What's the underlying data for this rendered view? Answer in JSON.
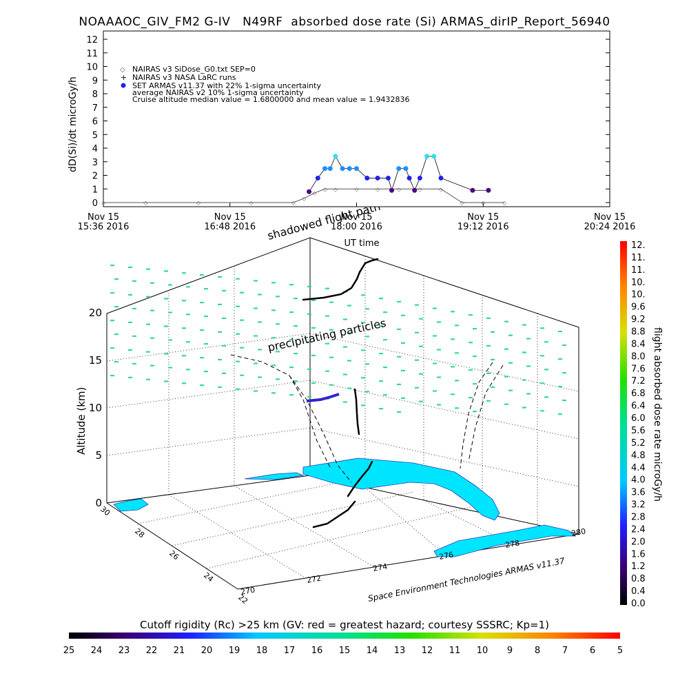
{
  "header": {
    "title": "NOAAAOC_GIV_FM2 G-IV   N49RF  absorbed dose rate (Si) ARMAS_dirIP_Report_56940"
  },
  "colors": {
    "nairas_gray": "#555555",
    "armas_blue": "#2222ee",
    "armas_lightblue": "#1e90ff",
    "armas_cyan": "#33ddee",
    "armas_purple": "#4b0082",
    "florida_cyan": "#00e5ff",
    "cutoff_green": "#33dd88"
  },
  "chart_data": [
    {
      "type": "scatter",
      "ylabel": "dD(Si)/dt microGy/h",
      "xlabel": "UT time",
      "ylim": [
        0,
        12
      ],
      "yticks": [
        "0",
        "1",
        "2",
        "3",
        "4",
        "5",
        "6",
        "7",
        "8",
        "9",
        "10",
        "11",
        "12"
      ],
      "xticks": [
        {
          "date": "Nov 15",
          "time": "15:36 2016"
        },
        {
          "date": "Nov 15",
          "time": "16:48 2016"
        },
        {
          "date": "Nov 15",
          "time": "18:00 2016"
        },
        {
          "date": "Nov 15",
          "time": "19:12 2016"
        },
        {
          "date": "Nov 15",
          "time": "20:24 2016"
        }
      ],
      "legend": [
        "NAIRAS v3 SiDose_G0.txt SEP=0",
        "NAIRAS v3 NASA LaRC runs",
        "SET ARMAS v11.37 with 22% 1-sigma uncertainty",
        "average NAIRAS v2 10% 1-sigma uncertainty",
        "Cruise altitude median value = 1.6800000 and mean value = 1.9432836"
      ],
      "legend_placement": "top-left",
      "series": [
        {
          "name": "NAIRAS v3 SiDose_G0.txt SEP=0",
          "x": [
            "15:36",
            "16:00",
            "16:30",
            "17:00",
            "17:24",
            "17:30",
            "17:36",
            "17:42",
            "17:48",
            "18:00",
            "18:12",
            "18:24",
            "18:36",
            "18:48",
            "19:00",
            "19:12",
            "19:24"
          ],
          "values": [
            0,
            0,
            0,
            0,
            0,
            0.3,
            0.7,
            1.0,
            1.0,
            1.0,
            1.0,
            1.0,
            1.0,
            1.0,
            0,
            0,
            0
          ]
        },
        {
          "name": "SET ARMAS v11.37 with 22% 1-sigma uncertainty",
          "x": [
            "17:33",
            "17:38",
            "17:42",
            "17:45",
            "17:48",
            "17:52",
            "17:56",
            "18:00",
            "18:06",
            "18:12",
            "18:18",
            "18:20",
            "18:24",
            "18:28",
            "18:30",
            "18:33",
            "18:36",
            "18:40",
            "18:44",
            "18:48",
            "19:06",
            "19:15"
          ],
          "values": [
            0.8,
            1.8,
            2.5,
            2.5,
            3.4,
            2.5,
            2.5,
            2.5,
            1.8,
            1.8,
            1.8,
            0.9,
            2.5,
            2.5,
            1.8,
            0.9,
            1.8,
            3.4,
            3.4,
            1.8,
            0.9,
            0.9
          ]
        }
      ]
    },
    {
      "type": "scatter",
      "ylabel": "Altitude (km)",
      "zticks": [
        "0",
        "5",
        "10",
        "15",
        "20"
      ],
      "lat_ticks": [
        "30",
        "28",
        "26",
        "24",
        "22"
      ],
      "lon_ticks": [
        "270",
        "272",
        "274",
        "276",
        "278",
        "280"
      ],
      "annotations": [
        "shadowed flight path",
        "precipitating particles",
        "Space Environment Technologies ARMAS v11.37"
      ]
    },
    {
      "type": "heatmap",
      "colorbar_label": "flight absorbed dose rate microGy/h",
      "range": [
        0.0,
        12.0
      ],
      "ticks": [
        "12.",
        "11.",
        "11.",
        "10.",
        "10.",
        "9.6",
        "9.2",
        "8.8",
        "8.4",
        "8.0",
        "7.6",
        "7.2",
        "6.8",
        "6.4",
        "6.0",
        "5.6",
        "5.2",
        "4.8",
        "4.4",
        "4.0",
        "3.6",
        "3.2",
        "2.8",
        "2.4",
        "2.0",
        "1.6",
        "1.2",
        "0.8",
        "0.4",
        "0.0"
      ]
    },
    {
      "type": "heatmap",
      "colorbar_label": "Cutoff rigidity (Rc) >25 km (GV: red = greatest hazard; courtesy SSSRC; Kp=1)",
      "range": [
        25,
        5
      ],
      "ticks": [
        "25",
        "24",
        "23",
        "22",
        "21",
        "20",
        "19",
        "18",
        "17",
        "16",
        "15",
        "14",
        "13",
        "12",
        "11",
        "10",
        "9",
        "8",
        "7",
        "6",
        "5"
      ]
    }
  ]
}
